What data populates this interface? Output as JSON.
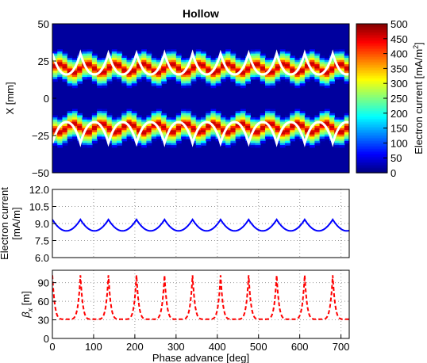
{
  "chart_data": [
    {
      "type": "heatmap",
      "title": "Hollow",
      "ylabel": "X [mm]",
      "ylim": [
        -50,
        50
      ],
      "xlim": [
        0,
        720
      ],
      "yticks": [
        50,
        25,
        0,
        -25,
        -50
      ],
      "yticklabels": [
        "50",
        "25",
        "0",
        "−25",
        "−50"
      ],
      "colormap": "jet",
      "colorbar": {
        "label": "Electron current [mA/m",
        "label_superscript": "2",
        "label_suffix": "]",
        "range": [
          0,
          500
        ],
        "ticks": [
          500,
          450,
          400,
          350,
          300,
          250,
          200,
          150,
          100,
          50,
          0
        ],
        "ticklabels": [
          "500",
          "450",
          "400",
          "350",
          "300",
          "250",
          "200",
          "150",
          "100",
          "50",
          "0"
        ]
      },
      "bands": [
        {
          "center_mm": 20,
          "amplitude_mm": 3,
          "peak": 470
        },
        {
          "center_mm": -20,
          "amplitude_mm": 3,
          "peak": 470
        }
      ],
      "envelope": {
        "color": "#ffffff",
        "period_deg": 68,
        "upper": {
          "min_mm": 16,
          "max_mm": 30
        },
        "lower": {
          "min_mm": -30,
          "max_mm": -16
        }
      }
    },
    {
      "type": "line",
      "ylabel": "Electron current\n[mA/m]",
      "ylabel_lines": [
        "Electron current",
        "[mA/m]"
      ],
      "ylim": [
        6.0,
        12.0
      ],
      "xlim": [
        0,
        720
      ],
      "yticks": [
        12.0,
        10.5,
        9.0,
        7.5,
        6.0
      ],
      "yticklabels": [
        "12.0",
        "10.5",
        "9.0",
        "7.5",
        "6.0"
      ],
      "grid": true,
      "series": [
        {
          "color": "#0000ff",
          "style": "solid",
          "min": 8.35,
          "max": 9.35,
          "period_deg": 68
        }
      ]
    },
    {
      "type": "line",
      "ylabel": "β",
      "ylabel_sub": "x",
      "ylabel_suffix": " [m]",
      "ylim": [
        0,
        110
      ],
      "xlim": [
        0,
        720
      ],
      "yticks": [
        90,
        60,
        30,
        0
      ],
      "yticklabels": [
        "90",
        "60",
        "30",
        "0"
      ],
      "xticks": [
        0,
        100,
        200,
        300,
        400,
        500,
        600,
        700
      ],
      "xticklabels": [
        "0",
        "100",
        "200",
        "300",
        "400",
        "500",
        "600",
        "700"
      ],
      "xlabel": "Phase advance [deg]",
      "grid": true,
      "series": [
        {
          "color": "#ff0000",
          "style": "dashed",
          "min": 31,
          "max": 102,
          "period_deg": 68
        }
      ]
    }
  ]
}
